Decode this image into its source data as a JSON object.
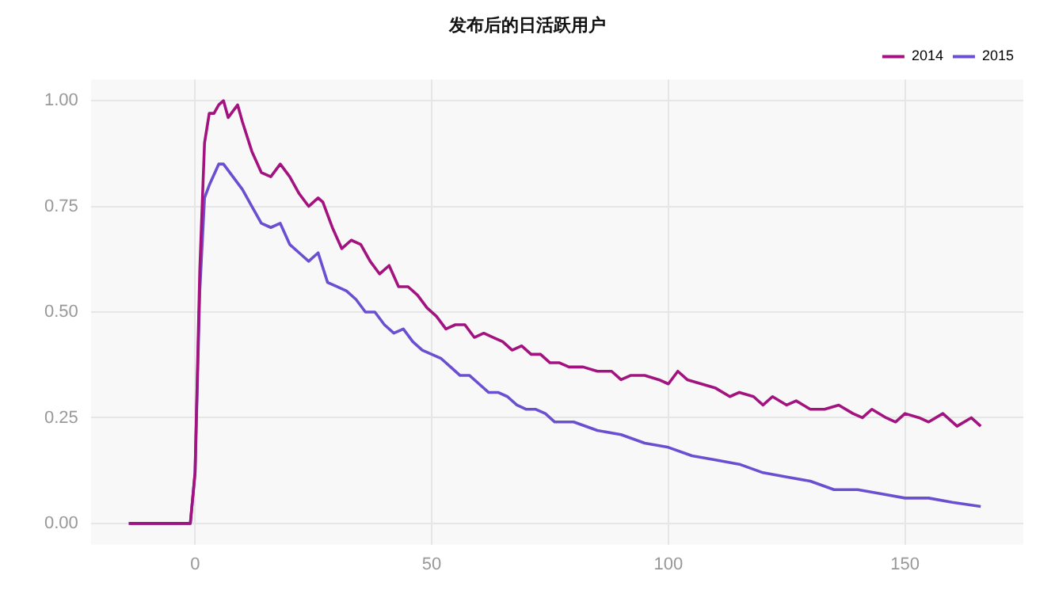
{
  "chart_data": {
    "type": "line",
    "title": "发布后的日活跃用户",
    "xlim": [
      -22,
      175
    ],
    "xticks": [
      0,
      50,
      100,
      150
    ],
    "ylim": [
      -0.05,
      1.05
    ],
    "yticks": [
      {
        "value": 0,
        "label": "0.00"
      },
      {
        "value": 0.25,
        "label": "0.25"
      },
      {
        "value": 0.5,
        "label": "0.50"
      },
      {
        "value": 0.75,
        "label": "0.75"
      },
      {
        "value": 1,
        "label": "1.00"
      }
    ],
    "grid": true,
    "legend": "top right",
    "marker": "none",
    "line_style": "solid",
    "series": [
      {
        "name": "2014",
        "color": "#a3137f",
        "x": [
          -14,
          -1,
          0,
          1,
          2,
          3,
          4,
          5,
          6,
          7,
          9,
          10,
          12,
          14,
          16,
          18,
          20,
          22,
          24,
          26,
          27,
          29,
          31,
          33,
          35,
          37,
          39,
          41,
          43,
          45,
          47,
          49,
          51,
          53,
          55,
          57,
          59,
          61,
          63,
          65,
          67,
          69,
          71,
          73,
          75,
          77,
          79,
          82,
          85,
          88,
          90,
          92,
          95,
          98,
          100,
          102,
          104,
          107,
          110,
          113,
          115,
          118,
          120,
          122,
          125,
          127,
          130,
          133,
          136,
          139,
          141,
          143,
          146,
          148,
          150,
          153,
          155,
          158,
          161,
          164,
          166
        ],
        "values": [
          0,
          0,
          0.12,
          0.6,
          0.9,
          0.97,
          0.97,
          0.99,
          1.0,
          0.96,
          0.99,
          0.95,
          0.88,
          0.83,
          0.82,
          0.85,
          0.82,
          0.78,
          0.75,
          0.77,
          0.76,
          0.7,
          0.65,
          0.67,
          0.66,
          0.62,
          0.59,
          0.61,
          0.56,
          0.56,
          0.54,
          0.51,
          0.49,
          0.46,
          0.47,
          0.47,
          0.44,
          0.45,
          0.44,
          0.43,
          0.41,
          0.42,
          0.4,
          0.4,
          0.38,
          0.38,
          0.37,
          0.37,
          0.36,
          0.36,
          0.34,
          0.35,
          0.35,
          0.34,
          0.33,
          0.36,
          0.34,
          0.33,
          0.32,
          0.3,
          0.31,
          0.3,
          0.28,
          0.3,
          0.28,
          0.29,
          0.27,
          0.27,
          0.28,
          0.26,
          0.25,
          0.27,
          0.25,
          0.24,
          0.26,
          0.25,
          0.24,
          0.26,
          0.23,
          0.25,
          0.23
        ]
      },
      {
        "name": "2015",
        "color": "#6b4fd1",
        "x": [
          -14,
          -1,
          0,
          1,
          2,
          3,
          5,
          6,
          8,
          10,
          12,
          14,
          16,
          18,
          20,
          22,
          24,
          26,
          28,
          30,
          32,
          34,
          36,
          38,
          40,
          42,
          44,
          46,
          48,
          50,
          52,
          54,
          56,
          58,
          60,
          62,
          64,
          66,
          68,
          70,
          72,
          74,
          76,
          80,
          85,
          90,
          95,
          100,
          105,
          110,
          115,
          120,
          125,
          130,
          135,
          140,
          145,
          150,
          155,
          160,
          166
        ],
        "values": [
          0,
          0,
          0.12,
          0.55,
          0.77,
          0.8,
          0.85,
          0.85,
          0.82,
          0.79,
          0.75,
          0.71,
          0.7,
          0.71,
          0.66,
          0.64,
          0.62,
          0.64,
          0.57,
          0.56,
          0.55,
          0.53,
          0.5,
          0.5,
          0.47,
          0.45,
          0.46,
          0.43,
          0.41,
          0.4,
          0.39,
          0.37,
          0.35,
          0.35,
          0.33,
          0.31,
          0.31,
          0.3,
          0.28,
          0.27,
          0.27,
          0.26,
          0.24,
          0.24,
          0.22,
          0.21,
          0.19,
          0.18,
          0.16,
          0.15,
          0.14,
          0.12,
          0.11,
          0.1,
          0.08,
          0.08,
          0.07,
          0.06,
          0.06,
          0.05,
          0.04
        ]
      }
    ]
  }
}
